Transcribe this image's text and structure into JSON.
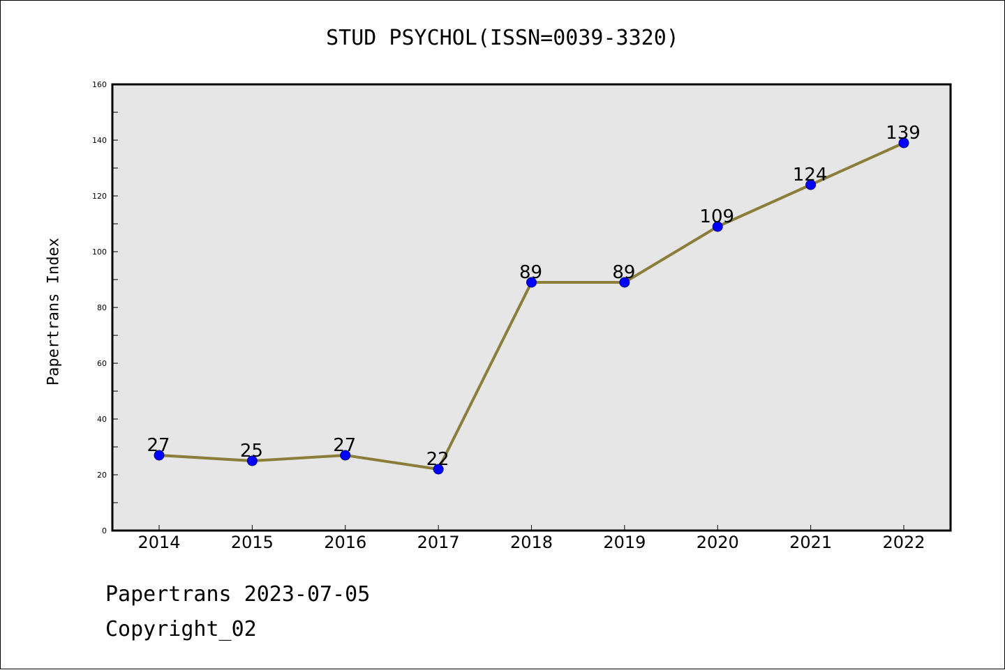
{
  "chart_data": {
    "type": "line",
    "title": "STUD PSYCHOL(ISSN=0039-3320)",
    "xlabel": "",
    "ylabel": "Papertrans Index",
    "categories": [
      "2014",
      "2015",
      "2016",
      "2017",
      "2018",
      "2019",
      "2020",
      "2021",
      "2022"
    ],
    "series": [
      {
        "values": [
          27,
          25,
          27,
          22,
          89,
          89,
          109,
          124,
          139
        ]
      }
    ],
    "data_labels": [
      "27",
      "25",
      "27",
      "22",
      "89",
      "89",
      "109",
      "124",
      "139"
    ],
    "ylim": [
      0,
      160
    ],
    "yticks": [
      "0",
      "20",
      "40",
      "60",
      "80",
      "100",
      "120",
      "140",
      "160"
    ],
    "grid": false,
    "colors": {
      "line": "#8B7D3A",
      "marker": "#0000FF",
      "plot_background": "#E6E6E6"
    }
  },
  "footer": {
    "line1": "Papertrans 2023-07-05",
    "line2": "Copyright_02"
  }
}
